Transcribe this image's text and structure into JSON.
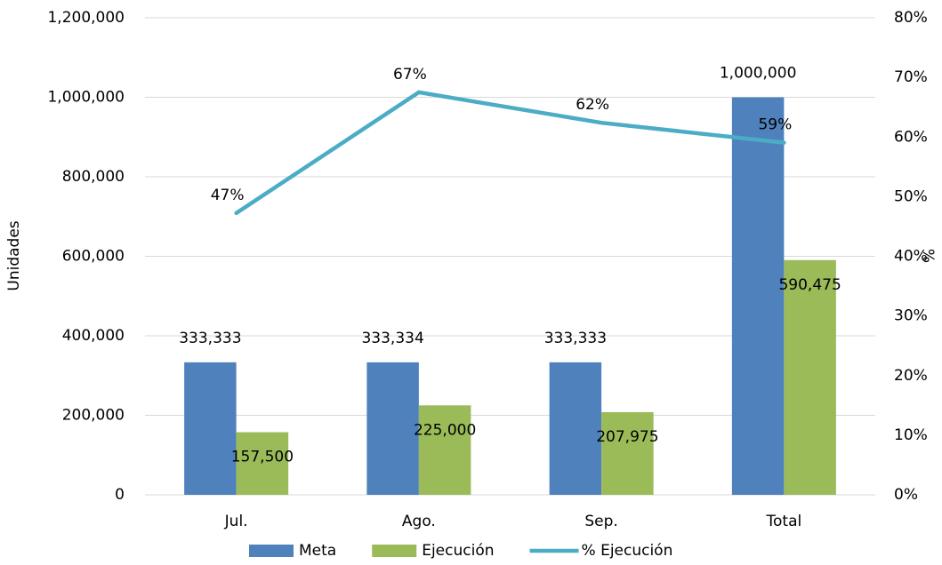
{
  "chart_data": {
    "type": "bar-line",
    "categories": [
      "Jul.",
      "Ago.",
      "Sep.",
      "Total"
    ],
    "series": [
      {
        "name": "Meta",
        "type": "bar",
        "color": "#4f81bd",
        "values": [
          333333,
          333334,
          333333,
          1000000
        ],
        "value_labels": [
          "333,333",
          "333,334",
          "333,333",
          "1,000,000"
        ]
      },
      {
        "name": "Ejecución",
        "type": "bar",
        "color": "#9bbb59",
        "values": [
          157500,
          225000,
          207975,
          590475
        ],
        "value_labels": [
          "157,500",
          "225,000",
          "207,975",
          "590,475"
        ]
      },
      {
        "name": "% Ejecución",
        "type": "line",
        "axis": "y2",
        "color": "#4bacc6",
        "values": [
          47.25,
          67.5,
          62.39,
          59.05
        ],
        "value_labels": [
          "47%",
          "67%",
          "62%",
          "59%"
        ]
      }
    ],
    "y_label": "Unidades",
    "y2_label": "%",
    "ylim": [
      0,
      1200000
    ],
    "yticks": [
      0,
      {
        "value": 200000,
        "label": "200,000"
      },
      {
        "value": 400000,
        "label": "400,000"
      },
      {
        "value": 600000,
        "label": "600,000"
      },
      {
        "value": 800000,
        "label": "800,000"
      },
      {
        "value": 1000000,
        "label": "1,000,000"
      },
      {
        "value": 1200000,
        "label": "1,200,000"
      }
    ],
    "y2lim": [
      0,
      80
    ],
    "y2ticks": [
      {
        "value": 0,
        "label": "0%"
      },
      {
        "value": 10,
        "label": "10%"
      },
      {
        "value": 20,
        "label": "20%"
      },
      {
        "value": 30,
        "label": "30%"
      },
      {
        "value": 40,
        "label": "40%"
      },
      {
        "value": 50,
        "label": "50%"
      },
      {
        "value": 60,
        "label": "60%"
      },
      {
        "value": 70,
        "label": "70%"
      },
      {
        "value": 80,
        "label": "80%"
      }
    ],
    "grid": true,
    "legend": "bottom"
  }
}
